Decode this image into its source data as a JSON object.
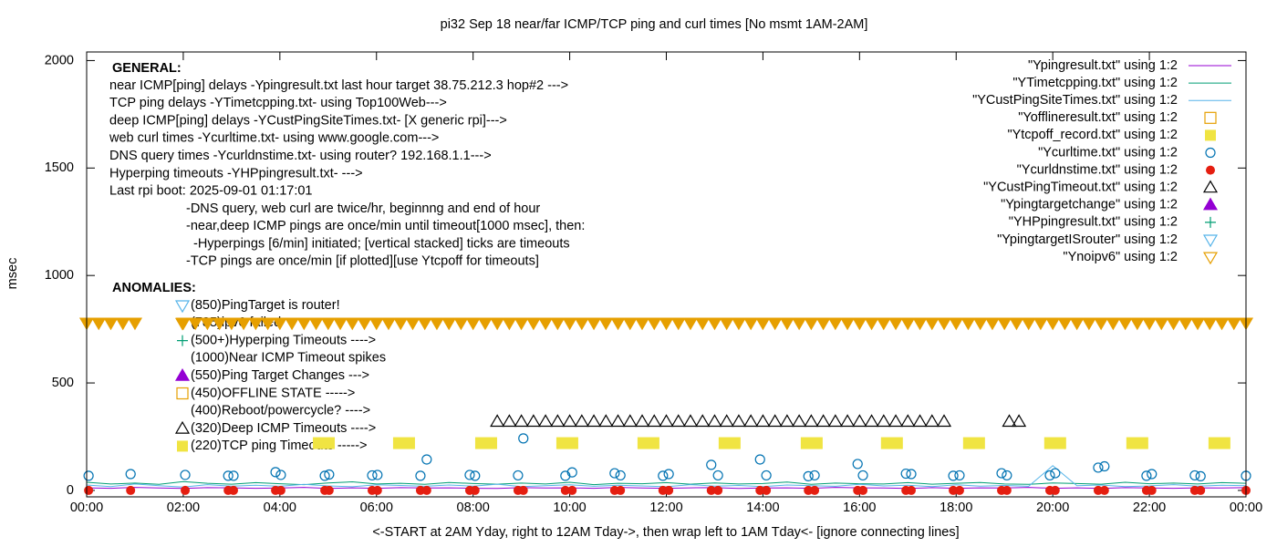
{
  "chart_data": {
    "type": "line",
    "title": "pi32 Sep 18  near/far ICMP/TCP ping and curl times [No msmt 1AM-2AM]",
    "x_label": "<-START at 2AM Yday, right to 12AM Tday->, then wrap left to 1AM Tday<- [ignore connecting lines]",
    "y_label": "msec",
    "xlim": [
      0,
      24
    ],
    "ylim": [
      -30,
      2040
    ],
    "xticks": [
      {
        "value": 0,
        "label": "00:00"
      },
      {
        "value": 2,
        "label": "02:00"
      },
      {
        "value": 4,
        "label": "04:00"
      },
      {
        "value": 6,
        "label": "06:00"
      },
      {
        "value": 8,
        "label": "08:00"
      },
      {
        "value": 10,
        "label": "10:00"
      },
      {
        "value": 12,
        "label": "12:00"
      },
      {
        "value": 14,
        "label": "14:00"
      },
      {
        "value": 16,
        "label": "16:00"
      },
      {
        "value": 18,
        "label": "18:00"
      },
      {
        "value": 20,
        "label": "20:00"
      },
      {
        "value": 22,
        "label": "22:00"
      },
      {
        "value": 24,
        "label": "00:00"
      }
    ],
    "yticks": [
      0,
      500,
      1000,
      1500,
      2000
    ],
    "legend": "top-right",
    "general_heading": "GENERAL:",
    "general_lines": [
      "near ICMP[ping] delays -Ypingresult.txt last hour target 38.75.212.3 hop#2 --->",
      "TCP ping delays -YTimetcpping.txt- using Top100Web--->",
      "deep ICMP[ping] delays -YCustPingSiteTimes.txt- [X generic rpi]--->",
      "web curl times -Ycurltime.txt- using www.google.com--->",
      "DNS query times -Ycurldnstime.txt- using router? 192.168.1.1--->",
      "Hyperping timeouts -YHPpingresult.txt- --->",
      "Last rpi boot: 2025-09-01 01:17:01"
    ],
    "notes": [
      "-DNS query, web curl are twice/hr, beginnng and end of hour",
      "-near,deep ICMP pings are once/min until timeout[1000 msec], then:",
      "-Hyperpings [6/min] initiated; [vertical stacked] ticks are timeouts",
      "-TCP pings are once/min [if plotted][use Ytcpoff for timeouts]"
    ],
    "anomalies_heading": "ANOMALIES:",
    "anomalies": [
      "(850)PingTarget is router!",
      "(785)ipv6 failed",
      "(500+)Hyperping Timeouts ---->",
      "(1000)Near ICMP Timeout spikes",
      "(550)Ping Target Changes --->",
      "(450)OFFLINE STATE ----->",
      "(400)Reboot/powercycle? ---->",
      "(320)Deep ICMP Timeouts ---->",
      "(220)TCP ping Timeouts ----->"
    ],
    "x": [
      0,
      0.5,
      1,
      1.5,
      2,
      2.5,
      3,
      3.5,
      4,
      4.5,
      5,
      5.5,
      6,
      6.5,
      7,
      7.5,
      8,
      8.5,
      9,
      9.5,
      10,
      10.5,
      11,
      11.5,
      12,
      12.5,
      13,
      13.5,
      14,
      14.5,
      15,
      15.5,
      16,
      16.5,
      17,
      17.5,
      18,
      18.5,
      19,
      19.5,
      20,
      20.5,
      21,
      21.5,
      22,
      22.5,
      23,
      23.5,
      24
    ],
    "series": [
      {
        "name": "\"Ypingresult.txt\" using 1:2",
        "style": "line",
        "color": "#9400d3",
        "values": [
          12,
          10,
          14,
          11,
          9,
          13,
          12,
          10,
          11,
          14,
          9,
          12,
          10,
          13,
          11,
          12,
          10,
          9,
          13,
          11,
          12,
          10,
          14,
          11,
          10,
          12,
          13,
          9,
          11,
          12,
          10,
          14,
          12,
          11,
          9,
          13,
          10,
          12,
          11,
          14,
          10,
          12,
          9,
          13,
          11,
          10,
          12,
          11,
          13
        ]
      },
      {
        "name": "\"YTimetcpping.txt\" using 1:2",
        "style": "line",
        "color": "#009e73",
        "values": [
          38,
          30,
          34,
          28,
          41,
          33,
          29,
          36,
          31,
          27,
          35,
          40,
          30,
          33,
          28,
          37,
          32,
          29,
          34,
          30,
          38,
          27,
          33,
          31,
          36,
          29,
          35,
          30,
          32,
          39,
          28,
          34,
          31,
          30,
          36,
          29,
          33,
          37,
          30,
          28,
          35,
          32,
          29,
          38,
          31,
          34,
          30,
          36,
          33
        ]
      },
      {
        "name": "\"YCustPingSiteTimes.txt\" using 1:2",
        "style": "line",
        "color": "#56b4e9",
        "values": [
          25,
          18,
          30,
          22,
          16,
          27,
          20,
          24,
          19,
          28,
          21,
          17,
          26,
          23,
          19,
          25,
          20,
          29,
          18,
          22,
          26,
          19,
          24,
          21,
          17,
          27,
          20,
          23,
          18,
          25,
          22,
          19,
          28,
          21,
          24,
          18,
          26,
          20,
          23,
          19,
          115,
          22,
          25,
          18,
          21,
          27,
          20,
          24,
          22
        ]
      },
      {
        "name": "\"Yofflineresult.txt\" using 1:2",
        "style": "points",
        "marker": "square-open",
        "color": "#e69f00",
        "x": [],
        "values": []
      },
      {
        "name": "\"Ytcpoff_record.txt\" using 1:2",
        "style": "points",
        "marker": "square-filled",
        "color": "#f0e442",
        "x": [
          4.91,
          6.57,
          8.27,
          9.95,
          11.63,
          13.31,
          15.01,
          16.67,
          18.37,
          20.05,
          21.75,
          23.45
        ],
        "values": [
          220,
          220,
          220,
          220,
          220,
          220,
          220,
          220,
          220,
          220,
          220,
          220
        ]
      },
      {
        "name": "\"Ycurltime.txt\" using 1:2",
        "style": "points",
        "marker": "circle-open",
        "color": "#0072b2",
        "x": [
          0.04,
          0.91,
          2.04,
          2.93,
          3.04,
          3.91,
          4.02,
          4.93,
          5.02,
          5.91,
          6.02,
          6.91,
          7.04,
          7.93,
          8.04,
          8.93,
          9.04,
          9.91,
          10.05,
          10.93,
          11.05,
          11.93,
          12.05,
          12.93,
          13.07,
          13.94,
          14.07,
          14.94,
          15.07,
          15.96,
          16.07,
          16.96,
          17.07,
          17.94,
          18.07,
          18.94,
          19.05,
          19.94,
          20.05,
          20.94,
          21.07,
          21.94,
          22.05,
          22.94,
          23.06,
          24
        ],
        "values": [
          68,
          76,
          72,
          68,
          68,
          85,
          72,
          68,
          74,
          70,
          72,
          68,
          144,
          72,
          68,
          70,
          242,
          68,
          84,
          80,
          70,
          68,
          76,
          119,
          70,
          144,
          70,
          66,
          70,
          123,
          70,
          78,
          76,
          68,
          70,
          80,
          70,
          70,
          80,
          106,
          112,
          68,
          76,
          70,
          66,
          68
        ]
      },
      {
        "name": "\"Ycurldnstime.txt\" using 1:2",
        "style": "points",
        "marker": "circle-filled",
        "color": "#e51e10",
        "x": [
          0.04,
          0.91,
          2.04,
          2.93,
          3.04,
          3.91,
          4.02,
          4.93,
          5.02,
          5.91,
          6.02,
          6.91,
          7.04,
          7.93,
          8.04,
          8.93,
          9.04,
          9.91,
          10.05,
          10.93,
          11.05,
          11.93,
          12.05,
          12.93,
          13.07,
          13.94,
          14.07,
          14.94,
          15.07,
          15.96,
          16.07,
          16.96,
          17.07,
          17.94,
          18.07,
          18.94,
          19.05,
          19.94,
          20.05,
          20.94,
          21.07,
          21.94,
          22.05,
          22.94,
          23.06,
          24
        ],
        "values": [
          0,
          0,
          0,
          0,
          0,
          0,
          0,
          0,
          0,
          0,
          0,
          0,
          0,
          0,
          0,
          0,
          0,
          0,
          0,
          0,
          0,
          0,
          0,
          0,
          0,
          0,
          0,
          0,
          0,
          0,
          0,
          0,
          0,
          0,
          0,
          0,
          0,
          0,
          0,
          0,
          0,
          0,
          0,
          0,
          0,
          0
        ]
      },
      {
        "name": "\"YCustPingTimeout.txt\" using 1:2",
        "style": "points",
        "marker": "triangle-open",
        "color": "#000000",
        "x": [
          8.5,
          8.75,
          9,
          9.25,
          9.5,
          9.75,
          10,
          10.25,
          10.5,
          10.75,
          11,
          11.25,
          11.5,
          11.75,
          12,
          12.25,
          12.5,
          12.75,
          13,
          13.25,
          13.5,
          13.75,
          14,
          14.25,
          14.5,
          14.75,
          15,
          15.25,
          15.5,
          15.75,
          16,
          16.25,
          16.5,
          16.75,
          17,
          17.25,
          17.5,
          17.75,
          19.1,
          19.3
        ],
        "values": [
          320,
          320,
          320,
          320,
          320,
          320,
          320,
          320,
          320,
          320,
          320,
          320,
          320,
          320,
          320,
          320,
          320,
          320,
          320,
          320,
          320,
          320,
          320,
          320,
          320,
          320,
          320,
          320,
          320,
          320,
          320,
          320,
          320,
          320,
          320,
          320,
          320,
          320,
          320,
          320
        ]
      },
      {
        "name": "\"Ypingtargetchange\" using 1:2",
        "style": "points",
        "marker": "triangle-filled",
        "color": "#9400d3",
        "x": [],
        "values": []
      },
      {
        "name": "\"YHPpingresult.txt\" using 1:2",
        "style": "points",
        "marker": "plus",
        "color": "#009e73",
        "x": [],
        "values": []
      },
      {
        "name": "\"YpingtargetISrouter\" using 1:2",
        "style": "points",
        "marker": "invtriangle-open",
        "color": "#56b4e9",
        "x": [],
        "values": []
      },
      {
        "name": "\"Ynoipv6\" using 1:2",
        "style": "points",
        "marker": "invtriangle-open",
        "color": "#e69f00",
        "x": [
          0,
          0.25,
          0.5,
          0.75,
          1,
          2,
          2.25,
          2.5,
          2.75,
          3,
          3.25,
          3.5,
          3.75,
          4,
          4.25,
          4.5,
          4.75,
          5,
          5.25,
          5.5,
          5.75,
          6,
          6.25,
          6.5,
          6.75,
          7,
          7.25,
          7.5,
          7.75,
          8,
          8.25,
          8.5,
          8.75,
          9,
          9.25,
          9.5,
          9.75,
          10,
          10.25,
          10.5,
          10.75,
          11,
          11.25,
          11.5,
          11.75,
          12,
          12.25,
          12.5,
          12.75,
          13,
          13.25,
          13.5,
          13.75,
          14,
          14.25,
          14.5,
          14.75,
          15,
          15.25,
          15.5,
          15.75,
          16,
          16.25,
          16.5,
          16.75,
          17,
          17.25,
          17.5,
          17.75,
          18,
          18.25,
          18.5,
          18.75,
          19,
          19.25,
          19.5,
          19.75,
          20,
          20.25,
          20.5,
          20.75,
          21,
          21.25,
          21.5,
          21.75,
          22,
          22.25,
          22.5,
          22.75,
          23,
          23.25,
          23.5,
          23.75,
          24
        ],
        "values": [
          780,
          780,
          780,
          780,
          780,
          780,
          780,
          780,
          780,
          780,
          780,
          780,
          780,
          780,
          780,
          780,
          780,
          780,
          780,
          780,
          780,
          780,
          780,
          780,
          780,
          780,
          780,
          780,
          780,
          780,
          780,
          780,
          780,
          780,
          780,
          780,
          780,
          780,
          780,
          780,
          780,
          780,
          780,
          780,
          780,
          780,
          780,
          780,
          780,
          780,
          780,
          780,
          780,
          780,
          780,
          780,
          780,
          780,
          780,
          780,
          780,
          780,
          780,
          780,
          780,
          780,
          780,
          780,
          780,
          780,
          780,
          780,
          780,
          780,
          780,
          780,
          780,
          780,
          780,
          780,
          780,
          780,
          780,
          780,
          780,
          780,
          780,
          780,
          780,
          780,
          780,
          780,
          780,
          780
        ]
      }
    ]
  }
}
